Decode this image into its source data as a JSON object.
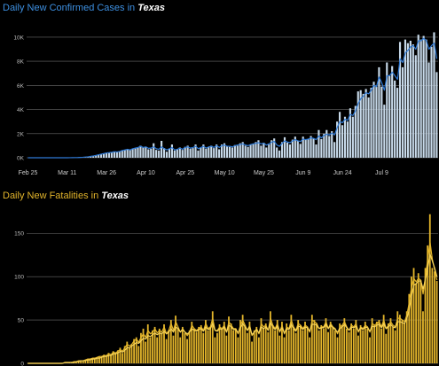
{
  "chart_data": [
    {
      "type": "bar",
      "title_prefix": "Daily New Confirmed Cases in",
      "title_place": "Texas",
      "x_tick_labels": [
        "Feb 25",
        "Mar 11",
        "Mar 26",
        "Apr 10",
        "Apr 25",
        "May 10",
        "May 25",
        "Jun 9",
        "Jun 24",
        "Jul 9"
      ],
      "y_tick_labels": [
        "0K",
        "2K",
        "4K",
        "6K",
        "8K",
        "10K"
      ],
      "y_ticks": [
        0,
        2000,
        4000,
        6000,
        8000,
        10000
      ],
      "ylim": [
        0,
        10800
      ],
      "grid": true,
      "series": [
        {
          "type": "bar",
          "color": "#c6d8e8",
          "values": [
            0,
            0,
            0,
            0,
            0,
            0,
            0,
            0,
            0,
            0,
            0,
            0,
            0,
            0,
            0,
            0,
            5,
            10,
            15,
            20,
            30,
            40,
            60,
            80,
            120,
            150,
            200,
            250,
            300,
            350,
            400,
            420,
            450,
            500,
            480,
            520,
            600,
            650,
            700,
            650,
            750,
            800,
            850,
            1000,
            850,
            900,
            700,
            750,
            1200,
            650,
            600,
            1400,
            800,
            500,
            750,
            1100,
            600,
            700,
            850,
            650,
            900,
            1000,
            750,
            800,
            1100,
            600,
            850,
            1100,
            750,
            900,
            1000,
            800,
            1100,
            700,
            1100,
            1200,
            950,
            900,
            850,
            1050,
            1000,
            1200,
            1300,
            1000,
            900,
            1100,
            1150,
            1300,
            1450,
            1000,
            1250,
            850,
            1100,
            1450,
            1600,
            850,
            600,
            1300,
            1700,
            1250,
            1100,
            1500,
            1750,
            1400,
            1150,
            1750,
            1500,
            1550,
            1800,
            1600,
            1100,
            2300,
            1550,
            2000,
            2300,
            1800,
            2200,
            1300,
            3000,
            3800,
            2700,
            3400,
            3000,
            4100,
            3400,
            4300,
            5500,
            5600,
            5300,
            5700,
            5000,
            5800,
            6300,
            5900,
            7500,
            5900,
            4400,
            7900,
            6800,
            7600,
            6400,
            5800,
            9600,
            7500,
            9800,
            9500,
            9700,
            9400,
            8500,
            10200,
            9800,
            10100,
            9800,
            7900,
            9200,
            10400,
            7100
          ]
        },
        {
          "type": "line",
          "color": "#2f7ad6",
          "values": [
            0,
            0,
            0,
            0,
            0,
            0,
            0,
            0,
            0,
            0,
            0,
            0,
            0,
            0,
            0,
            0,
            5,
            10,
            15,
            20,
            30,
            40,
            60,
            80,
            120,
            150,
            200,
            250,
            300,
            350,
            400,
            420,
            450,
            500,
            480,
            520,
            600,
            650,
            700,
            650,
            750,
            800,
            850,
            950,
            850,
            900,
            780,
            800,
            900,
            750,
            700,
            900,
            750,
            650,
            750,
            850,
            650,
            700,
            800,
            700,
            850,
            900,
            800,
            850,
            950,
            750,
            850,
            950,
            800,
            900,
            950,
            850,
            1000,
            850,
            1000,
            1050,
            950,
            950,
            900,
            1000,
            1050,
            1100,
            1150,
            1050,
            1000,
            1100,
            1150,
            1200,
            1250,
            1150,
            1200,
            1050,
            1150,
            1300,
            1350,
            1050,
            950,
            1200,
            1400,
            1300,
            1250,
            1400,
            1500,
            1400,
            1350,
            1550,
            1500,
            1550,
            1650,
            1600,
            1500,
            1800,
            1650,
            1850,
            1950,
            1900,
            2050,
            1900,
            2500,
            3000,
            2900,
            3200,
            3100,
            3600,
            3500,
            3900,
            4500,
            4900,
            5100,
            5400,
            5300,
            5600,
            6000,
            5900,
            6700,
            6200,
            5600,
            6800,
            6800,
            7100,
            6800,
            6500,
            8200,
            7900,
            8700,
            8900,
            9200,
            9300,
            9000,
            9700,
            9700,
            9900,
            9700,
            9000,
            9300,
            9500,
            8200
          ]
        }
      ]
    },
    {
      "type": "bar",
      "title_prefix": "Daily New Fatalities in",
      "title_place": "Texas",
      "y_tick_labels": [
        "0",
        "50",
        "100",
        "150"
      ],
      "y_ticks": [
        0,
        50,
        100,
        150
      ],
      "ylim": [
        0,
        185
      ],
      "grid": true,
      "series": [
        {
          "type": "bar",
          "color": "#e3b52b",
          "values": [
            0,
            0,
            0,
            0,
            0,
            0,
            0,
            0,
            0,
            0,
            0,
            0,
            0,
            0,
            0,
            0,
            1,
            1,
            1,
            1,
            2,
            2,
            3,
            3,
            3,
            4,
            5,
            5,
            6,
            6,
            7,
            8,
            8,
            10,
            9,
            12,
            10,
            14,
            12,
            15,
            18,
            12,
            20,
            25,
            18,
            22,
            28,
            30,
            20,
            35,
            40,
            25,
            45,
            30,
            38,
            42,
            30,
            40,
            35,
            45,
            28,
            38,
            50,
            32,
            55,
            40,
            30,
            42,
            35,
            28,
            38,
            48,
            40,
            36,
            42,
            44,
            35,
            50,
            38,
            42,
            60,
            30,
            35,
            45,
            40,
            48,
            32,
            54,
            46,
            38,
            40,
            30,
            50,
            56,
            44,
            35,
            48,
            25,
            38,
            42,
            30,
            52,
            40,
            46,
            36,
            60,
            44,
            38,
            50,
            32,
            48,
            30,
            46,
            38,
            56,
            40,
            35,
            50,
            44,
            38,
            48,
            42,
            30,
            56,
            50,
            46,
            38,
            44,
            40,
            52,
            36,
            48,
            42,
            38,
            30,
            46,
            44,
            52,
            40,
            36,
            46,
            40,
            50,
            32,
            44,
            38,
            48,
            40,
            30,
            52,
            44,
            48,
            50,
            40,
            56,
            34,
            46,
            52,
            42,
            38,
            60,
            56,
            50,
            46,
            60,
            80,
            100,
            110,
            92,
            104,
            96,
            60,
            110,
            136,
            172,
            110,
            106,
            95
          ]
        },
        {
          "type": "line",
          "color": "#e3b52b",
          "values": [
            0,
            0,
            0,
            0,
            0,
            0,
            0,
            0,
            0,
            0,
            0,
            0,
            0,
            0,
            0,
            0,
            1,
            1,
            1,
            1,
            2,
            2,
            3,
            3,
            3,
            4,
            5,
            5,
            6,
            6,
            7,
            8,
            8,
            9,
            9,
            11,
            10,
            13,
            12,
            14,
            16,
            14,
            18,
            22,
            20,
            22,
            26,
            28,
            24,
            30,
            34,
            30,
            38,
            34,
            36,
            40,
            35,
            38,
            36,
            42,
            34,
            38,
            46,
            38,
            48,
            42,
            36,
            40,
            36,
            32,
            36,
            44,
            40,
            38,
            40,
            42,
            38,
            46,
            40,
            42,
            52,
            38,
            38,
            42,
            40,
            44,
            36,
            48,
            44,
            40,
            40,
            34,
            44,
            50,
            44,
            38,
            44,
            32,
            36,
            40,
            34,
            46,
            42,
            44,
            38,
            52,
            44,
            40,
            46,
            36,
            44,
            34,
            42,
            40,
            50,
            42,
            38,
            46,
            44,
            40,
            44,
            42,
            36,
            50,
            48,
            46,
            40,
            42,
            42,
            48,
            40,
            46,
            42,
            40,
            34,
            42,
            44,
            48,
            42,
            38,
            44,
            42,
            46,
            36,
            42,
            40,
            44,
            42,
            36,
            46,
            44,
            46,
            48,
            42,
            50,
            40,
            44,
            48,
            44,
            42,
            52,
            52,
            50,
            48,
            56,
            70,
            88,
            98,
            94,
            98,
            96,
            80,
            100,
            120,
            140,
            120,
            108,
            96
          ]
        },
        {
          "type": "line",
          "color": "#f6d35a",
          "values": [
            0,
            0,
            0,
            0,
            0,
            0,
            0,
            0,
            0,
            0,
            0,
            0,
            0,
            0,
            0,
            0,
            1,
            1,
            1,
            1,
            1,
            2,
            2,
            3,
            3,
            3,
            4,
            4,
            5,
            5,
            6,
            6,
            7,
            8,
            8,
            9,
            9,
            11,
            11,
            12,
            14,
            13,
            15,
            18,
            18,
            20,
            22,
            24,
            23,
            26,
            29,
            28,
            32,
            31,
            33,
            35,
            33,
            35,
            34,
            37,
            34,
            36,
            40,
            36,
            42,
            40,
            36,
            39,
            36,
            34,
            36,
            40,
            38,
            37,
            39,
            40,
            37,
            42,
            39,
            40,
            46,
            38,
            37,
            40,
            39,
            42,
            36,
            44,
            42,
            39,
            39,
            35,
            41,
            46,
            42,
            38,
            42,
            33,
            36,
            39,
            35,
            42,
            40,
            42,
            38,
            47,
            42,
            39,
            43,
            37,
            41,
            35,
            40,
            39,
            45,
            40,
            37,
            43,
            42,
            39,
            42,
            41,
            37,
            45,
            45,
            44,
            40,
            41,
            41,
            45,
            40,
            44,
            41,
            39,
            36,
            40,
            42,
            45,
            41,
            38,
            42,
            41,
            43,
            37,
            41,
            39,
            42,
            41,
            37,
            43,
            42,
            44,
            45,
            41,
            46,
            40,
            42,
            45,
            42,
            41,
            48,
            48,
            47,
            46,
            52,
            62,
            78,
            90,
            92,
            95,
            95,
            86,
            96,
            110,
            126,
            118,
            110,
            100
          ]
        }
      ]
    }
  ]
}
